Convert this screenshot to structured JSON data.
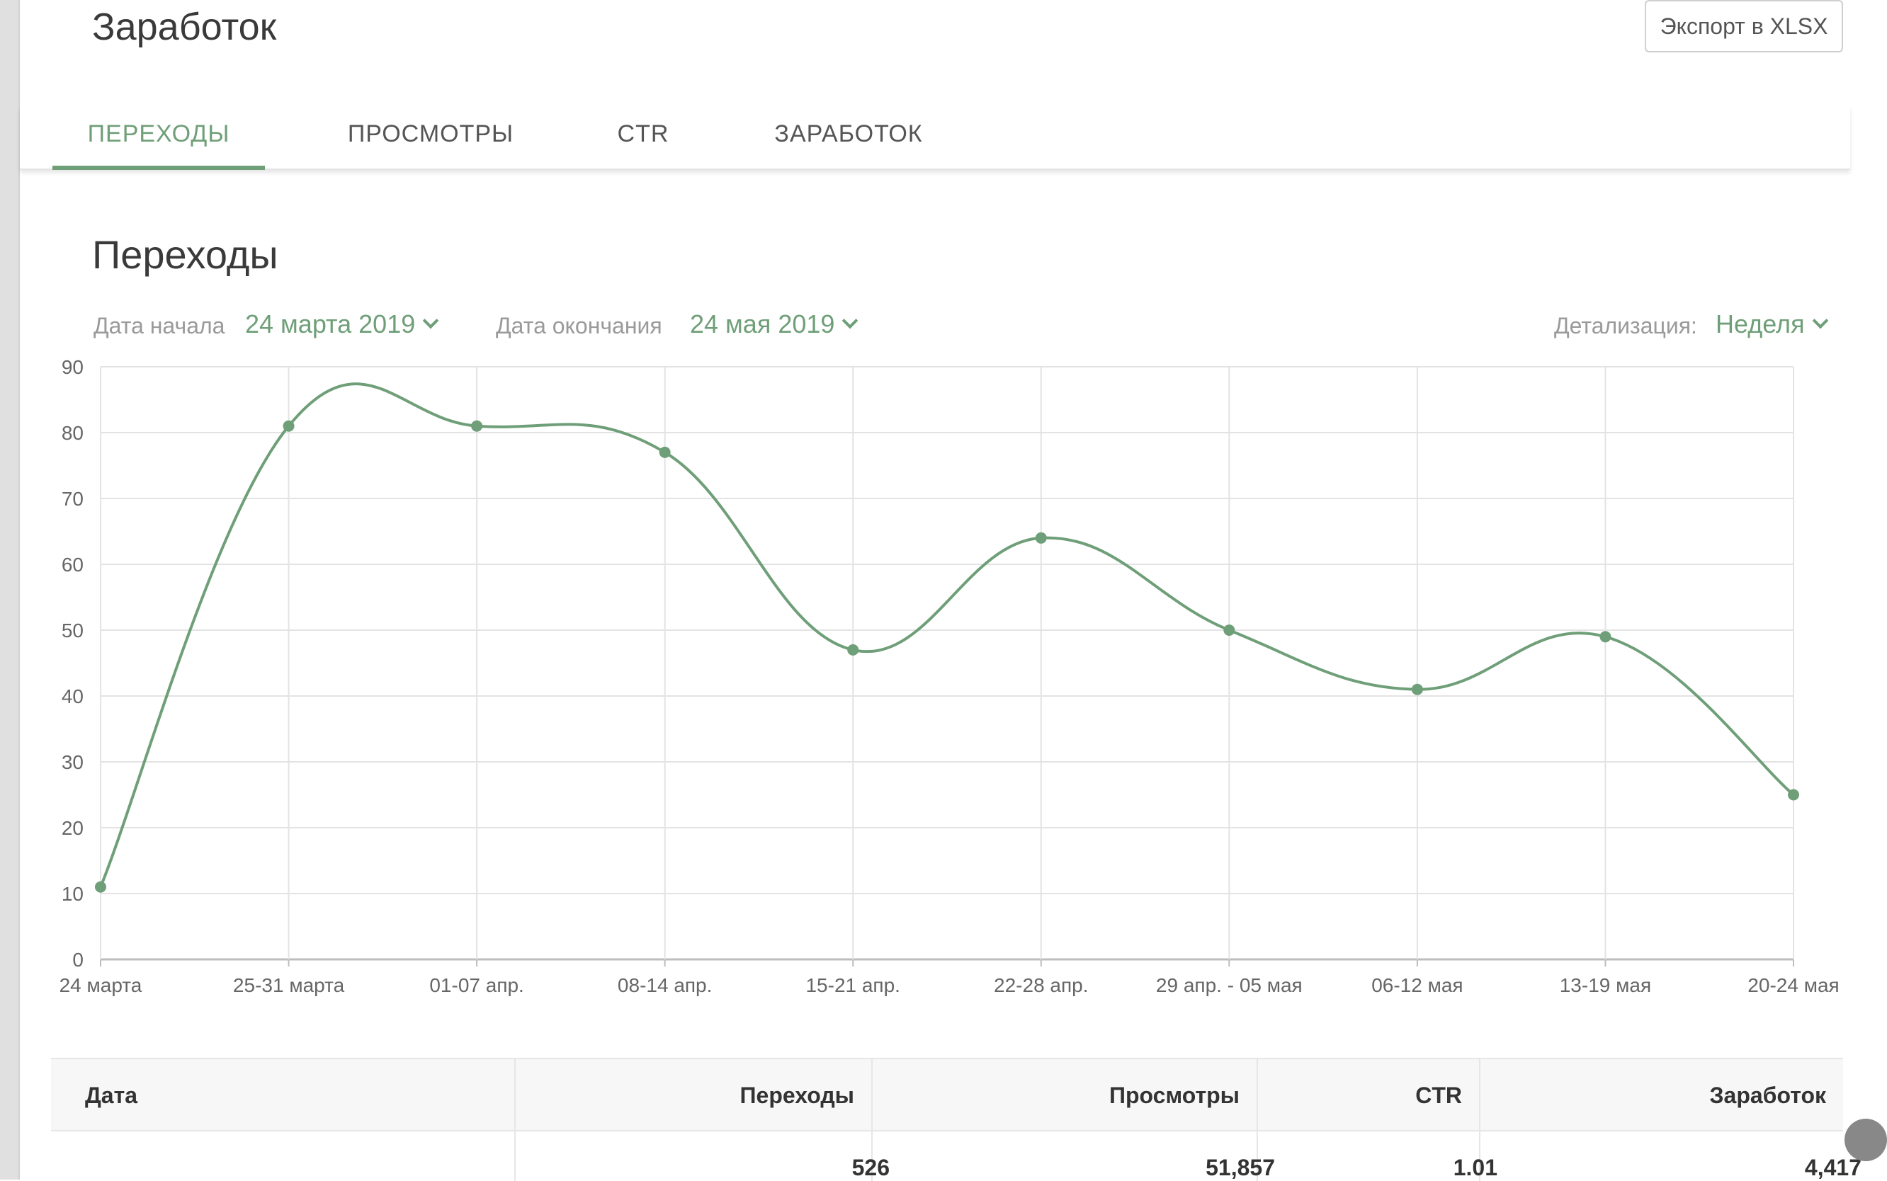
{
  "header": {
    "title": "Заработок",
    "export_label": "Экспорт в XLSX"
  },
  "tabs": [
    {
      "label": "ПЕРЕХОДЫ",
      "active": true
    },
    {
      "label": "ПРОСМОТРЫ",
      "active": false
    },
    {
      "label": "CTR",
      "active": false
    },
    {
      "label": "ЗАРАБОТОК",
      "active": false
    }
  ],
  "section": {
    "title": "Переходы"
  },
  "filters": {
    "start_label": "Дата начала",
    "start_value": "24 марта 2019",
    "end_label": "Дата окончания",
    "end_value": "24 мая 2019",
    "detail_label": "Детализация:",
    "detail_value": "Неделя"
  },
  "colors": {
    "accent": "#6f9f78",
    "grid": "#e3e3e3"
  },
  "chart_data": {
    "type": "line",
    "categories": [
      "24 марта",
      "25-31 марта",
      "01-07 апр.",
      "08-14 апр.",
      "15-21 апр.",
      "22-28 апр.",
      "29 апр. - 05 мая",
      "06-12 мая",
      "13-19 мая",
      "20-24 мая"
    ],
    "series": [
      {
        "values": [
          11,
          81,
          81,
          77,
          47,
          64,
          50,
          41,
          49,
          25
        ]
      }
    ],
    "yticks": [
      0,
      10,
      20,
      30,
      40,
      50,
      60,
      70,
      80,
      90
    ],
    "ylim": [
      0,
      90
    ],
    "grid": true,
    "smooth": true
  },
  "table": {
    "headers": [
      "Дата",
      "Переходы",
      "Просмотры",
      "CTR",
      "Заработок"
    ],
    "rows": [
      [
        "",
        "526",
        "51,857",
        "1.01",
        "4,417"
      ]
    ]
  }
}
